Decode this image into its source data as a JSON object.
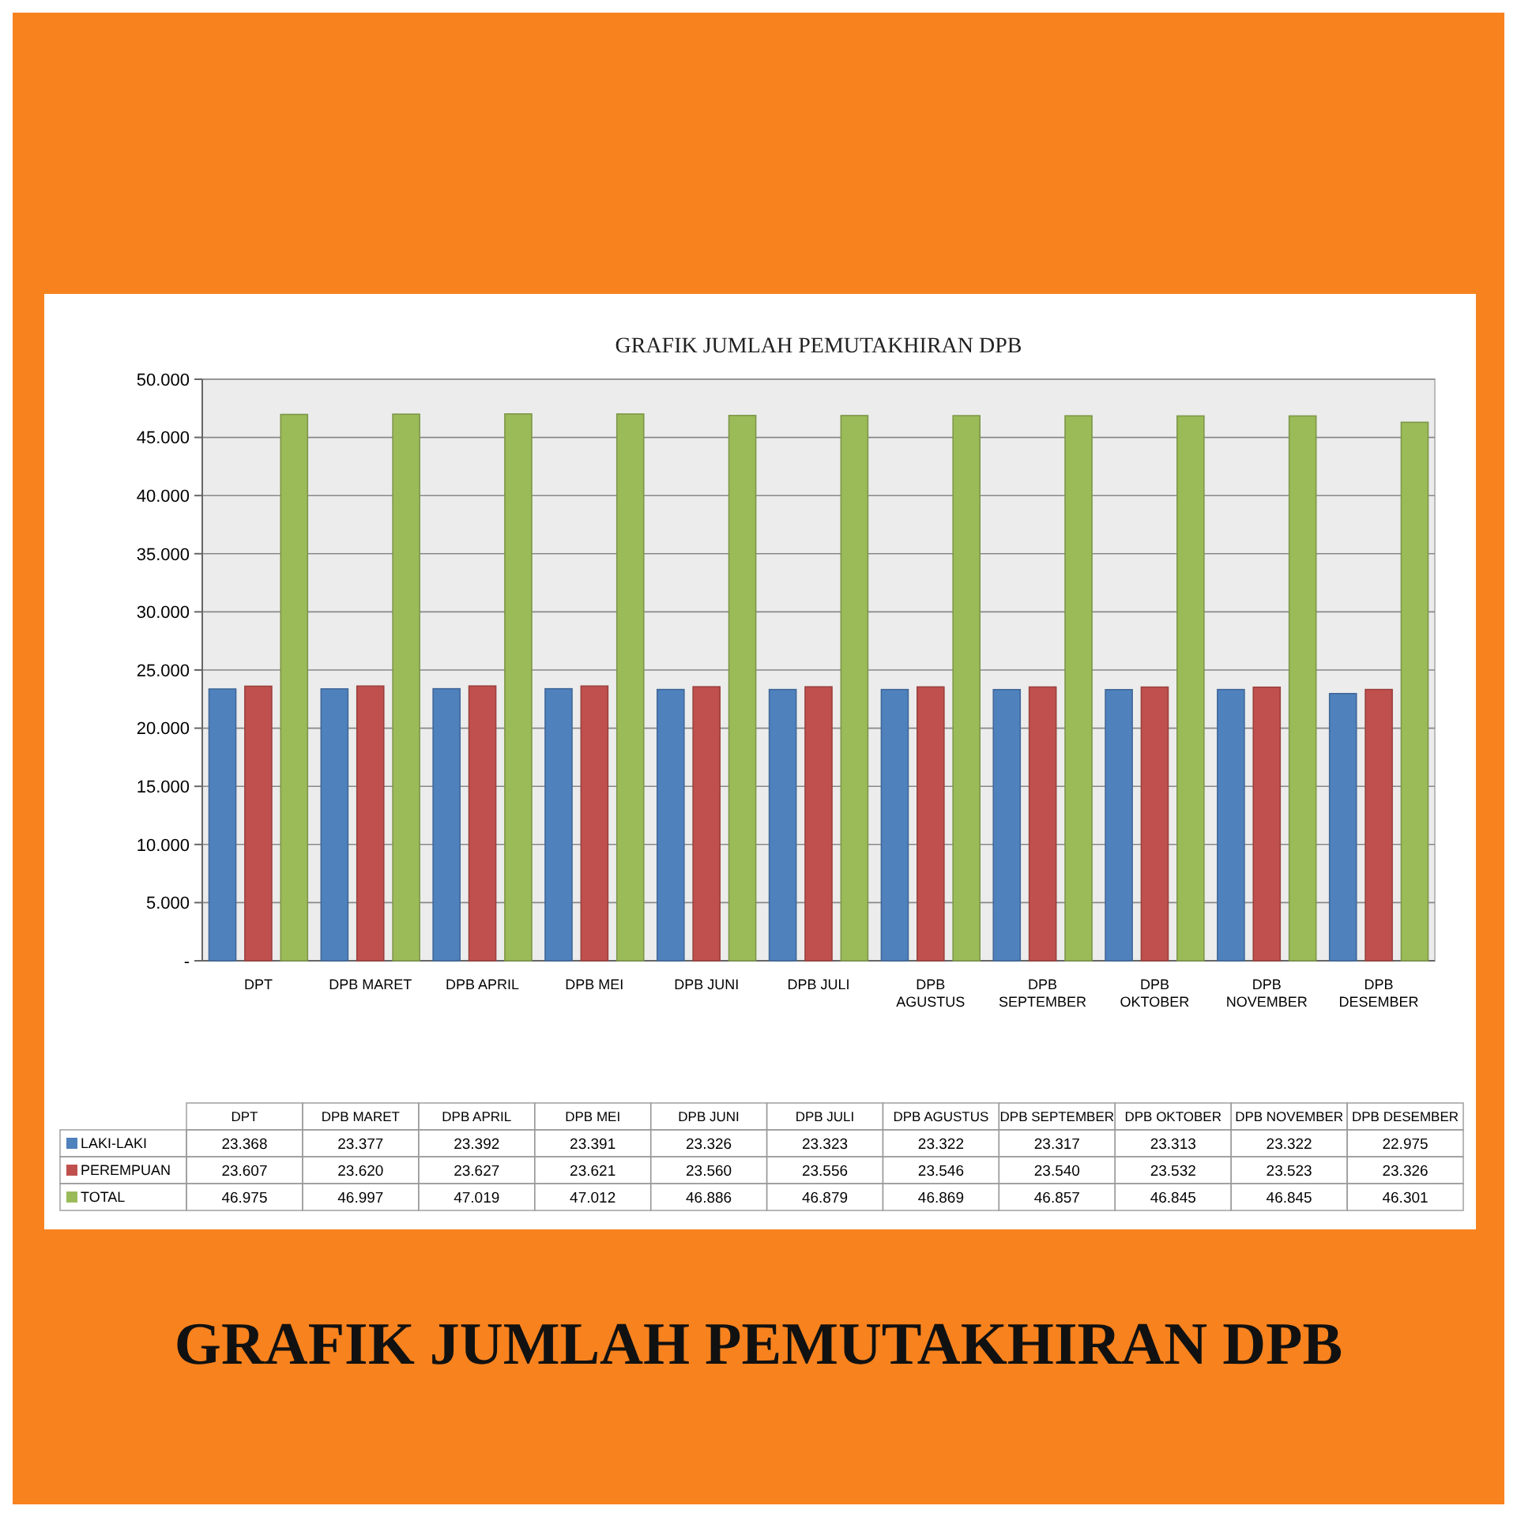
{
  "chart_data": {
    "type": "bar",
    "title": "GRAFIK JUMLAH PEMUTAKHIRAN DPB",
    "annotations": [
      "GRAFIK JUMLAH PEMUTAKHIRAN DPB"
    ],
    "categories": [
      "DPT",
      "DPB MARET",
      "DPB APRIL",
      "DPB MEI",
      "DPB JUNI",
      "DPB JULI",
      "DPB AGUSTUS",
      "DPB SEPTEMBER",
      "DPB OKTOBER",
      "DPB NOVEMBER",
      "DPB DESEMBER"
    ],
    "series": [
      {
        "name": "LAKI-LAKI",
        "color": "#4f81bd",
        "values": [
          23368,
          23377,
          23392,
          23391,
          23326,
          23323,
          23322,
          23317,
          23313,
          23322,
          22975
        ],
        "value_labels": [
          "23.368",
          "23.377",
          "23.392",
          "23.391",
          "23.326",
          "23.323",
          "23.322",
          "23.317",
          "23.313",
          "23.322",
          "22.975"
        ]
      },
      {
        "name": "PEREMPUAN",
        "color": "#c0504d",
        "values": [
          23607,
          23620,
          23627,
          23621,
          23560,
          23556,
          23546,
          23540,
          23532,
          23523,
          23326
        ],
        "value_labels": [
          "23.607",
          "23.620",
          "23.627",
          "23.621",
          "23.560",
          "23.556",
          "23.546",
          "23.540",
          "23.532",
          "23.523",
          "23.326"
        ]
      },
      {
        "name": "TOTAL",
        "color": "#9bbb59",
        "values": [
          46975,
          46997,
          47019,
          47012,
          46886,
          46879,
          46869,
          46857,
          46845,
          46845,
          46301
        ],
        "value_labels": [
          "46.975",
          "46.997",
          "47.019",
          "47.012",
          "46.886",
          "46.879",
          "46.869",
          "46.857",
          "46.845",
          "46.845",
          "46.301"
        ]
      }
    ],
    "ylim": [
      0,
      50000
    ],
    "yticks": [
      {
        "value": 0,
        "label": "-"
      },
      {
        "value": 5000,
        "label": "5.000"
      },
      {
        "value": 10000,
        "label": "10.000"
      },
      {
        "value": 15000,
        "label": "15.000"
      },
      {
        "value": 20000,
        "label": "20.000"
      },
      {
        "value": 25000,
        "label": "25.000"
      },
      {
        "value": 30000,
        "label": "30.000"
      },
      {
        "value": 35000,
        "label": "35.000"
      },
      {
        "value": 40000,
        "label": "40.000"
      },
      {
        "value": 45000,
        "label": "45.000"
      },
      {
        "value": 50000,
        "label": "50.000"
      }
    ],
    "grid": "y",
    "legend": "bottom"
  }
}
